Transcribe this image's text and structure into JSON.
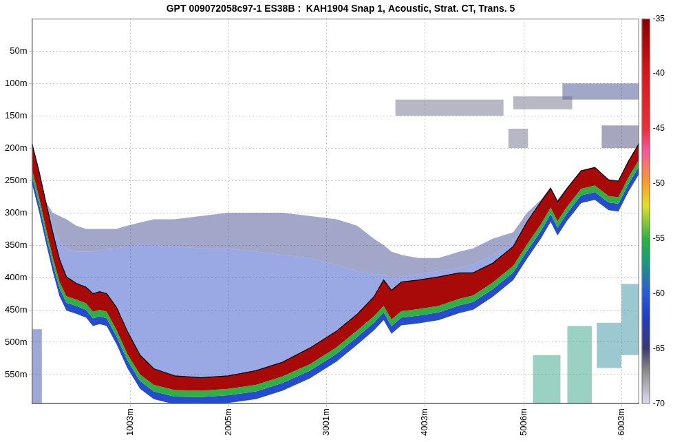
{
  "chart_data": {
    "type": "echogram",
    "title": "GPT 009072058c97-1 ES38B :  KAH1904 Snap 1, Acoustic, Strat. CT, Trans. 5",
    "grid": true,
    "xlim": [
      0,
      6180
    ],
    "xticks": [
      {
        "value": 1003,
        "label": "1003m"
      },
      {
        "value": 2005,
        "label": "2005m"
      },
      {
        "value": 3001,
        "label": "3001m"
      },
      {
        "value": 4003,
        "label": "4003m"
      },
      {
        "value": 5006,
        "label": "5006m"
      },
      {
        "value": 6003,
        "label": "6003m"
      }
    ],
    "ylim": [
      0,
      595
    ],
    "yticks": [
      {
        "value": 50,
        "label": "50m"
      },
      {
        "value": 100,
        "label": "100m"
      },
      {
        "value": 150,
        "label": "150m"
      },
      {
        "value": 200,
        "label": "200m"
      },
      {
        "value": 250,
        "label": "250m"
      },
      {
        "value": 300,
        "label": "300m"
      },
      {
        "value": 350,
        "label": "350m"
      },
      {
        "value": 400,
        "label": "400m"
      },
      {
        "value": 450,
        "label": "450m"
      },
      {
        "value": 500,
        "label": "500m"
      },
      {
        "value": 550,
        "label": "550m"
      }
    ],
    "colorbar_lim": [
      -70,
      -35
    ],
    "colorbar_ticks": [
      -70,
      -65,
      -60,
      -55,
      -50,
      -45,
      -40,
      -35
    ],
    "echogram": {
      "x": [
        0,
        70,
        140,
        210,
        280,
        350,
        450,
        550,
        620,
        690,
        760,
        860,
        970,
        1100,
        1240,
        1450,
        1720,
        2000,
        2280,
        2550,
        2830,
        3100,
        3310,
        3480,
        3580,
        3660,
        3760,
        3930,
        4140,
        4350,
        4490,
        4690,
        4900,
        5040,
        5180,
        5280,
        5350,
        5450,
        5590,
        5730,
        5870,
        5970,
        6070,
        6180
      ],
      "seabed": [
        193,
        235,
        283,
        330,
        372,
        399,
        409,
        415,
        425,
        422,
        425,
        446,
        483,
        520,
        541,
        552,
        555,
        552,
        544,
        531,
        509,
        483,
        457,
        430,
        404,
        420,
        407,
        404,
        399,
        393,
        393,
        378,
        352,
        314,
        283,
        262,
        283,
        262,
        235,
        230,
        249,
        251,
        221,
        193
      ],
      "bands_above": [
        {
          "sv": -64,
          "top": [
            193,
            235,
            283,
            300,
            305,
            310,
            320,
            325,
            325,
            325,
            325,
            325,
            320,
            315,
            310,
            310,
            305,
            300,
            300,
            300,
            305,
            310,
            320,
            340,
            350,
            360,
            365,
            370,
            370,
            360,
            355,
            340,
            330,
            300,
            280,
            260,
            280,
            260,
            235,
            230,
            249,
            251,
            221,
            193
          ]
        },
        {
          "sv": -62,
          "top": [
            193,
            235,
            283,
            320,
            345,
            355,
            360,
            360,
            360,
            358,
            356,
            355,
            352,
            350,
            350,
            352,
            355,
            355,
            360,
            365,
            370,
            380,
            390,
            395,
            395,
            400,
            398,
            395,
            390,
            385,
            380,
            365,
            345,
            310,
            280,
            260,
            280,
            260,
            235,
            230,
            249,
            251,
            221,
            193
          ]
        }
      ],
      "bands_below": [
        {
          "sv": -37,
          "bottom": [
            233,
            275,
            323,
            368,
            407,
            429,
            434,
            440,
            453,
            450,
            453,
            481,
            518,
            550,
            566,
            574,
            575,
            572,
            566,
            553,
            534,
            508,
            482,
            460,
            444,
            465,
            452,
            449,
            444,
            433,
            428,
            408,
            382,
            349,
            318,
            292,
            313,
            290,
            263,
            258,
            274,
            276,
            246,
            218
          ]
        },
        {
          "sv": -55,
          "bottom": [
            243,
            285,
            333,
            378,
            417,
            439,
            444,
            450,
            463,
            460,
            463,
            491,
            528,
            560,
            576,
            584,
            585,
            582,
            576,
            563,
            544,
            518,
            492,
            470,
            454,
            475,
            462,
            459,
            454,
            443,
            438,
            418,
            392,
            359,
            328,
            302,
            323,
            300,
            273,
            268,
            284,
            286,
            256,
            228
          ]
        },
        {
          "sv": -61,
          "bottom": [
            255,
            297,
            345,
            390,
            429,
            451,
            456,
            462,
            475,
            472,
            475,
            503,
            540,
            572,
            588,
            596,
            597,
            594,
            588,
            575,
            556,
            530,
            504,
            482,
            466,
            487,
            474,
            471,
            466,
            455,
            450,
            430,
            404,
            371,
            340,
            314,
            335,
            312,
            285,
            280,
            296,
            298,
            268,
            240
          ]
        }
      ],
      "patches": [
        [
          5400,
          6180,
          100,
          125,
          -64
        ],
        [
          4900,
          5500,
          120,
          140,
          -66
        ],
        [
          3700,
          4800,
          125,
          150,
          -66
        ],
        [
          5800,
          6180,
          165,
          200,
          -65
        ],
        [
          4850,
          5050,
          170,
          200,
          -66
        ],
        [
          5100,
          5380,
          520,
          595,
          -57
        ],
        [
          5450,
          5700,
          475,
          595,
          -57
        ],
        [
          5750,
          6000,
          470,
          540,
          -58
        ],
        [
          6000,
          6180,
          410,
          520,
          -58
        ],
        [
          0,
          100,
          480,
          595,
          -63
        ]
      ]
    }
  }
}
